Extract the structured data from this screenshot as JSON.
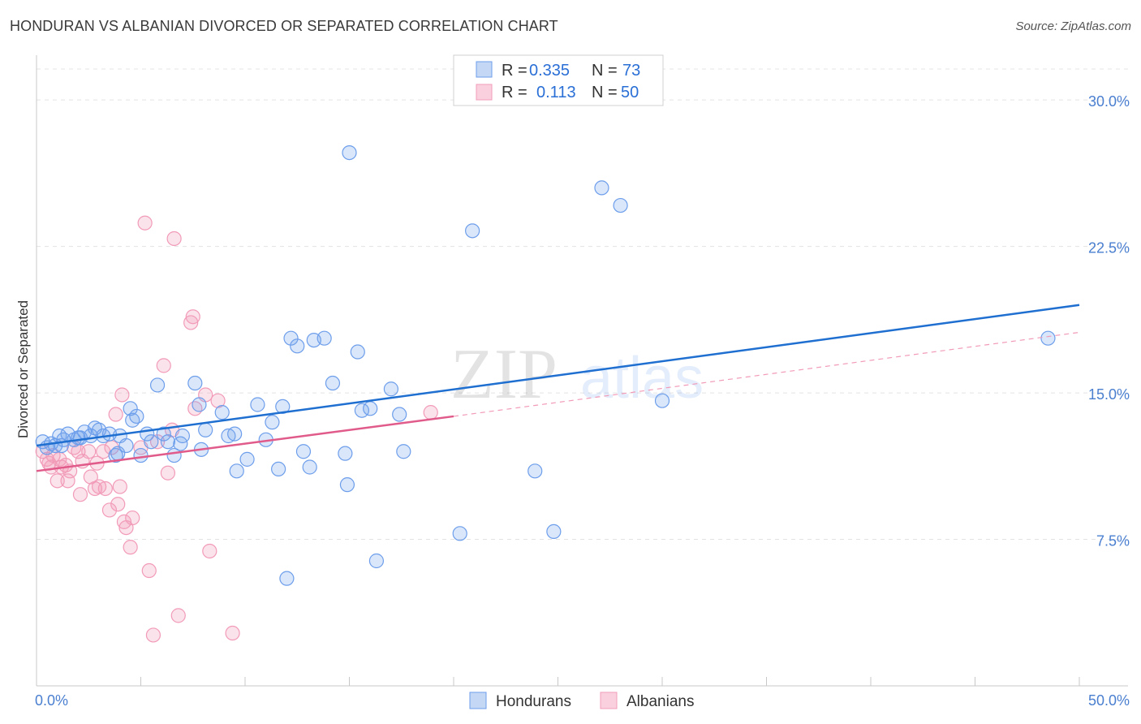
{
  "title": "HONDURAN VS ALBANIAN DIVORCED OR SEPARATED CORRELATION CHART",
  "source": "Source: ZipAtlas.com",
  "watermark": {
    "bold": "ZIP",
    "light": "atlas"
  },
  "colors": {
    "honduran": "#6d9eeb",
    "honduran_line": "#1f6fd1",
    "albanian": "#f29bb8",
    "albanian_line": "#e05a8a",
    "tick": "#4a7fd0"
  },
  "legend": {
    "r_label": "R =",
    "n_label": "N =",
    "rows": [
      {
        "series": "Hondurans",
        "r": "0.335",
        "n": "73"
      },
      {
        "series": "Albanians",
        "r": "0.113",
        "n": "50"
      }
    ]
  },
  "chart_data": {
    "type": "scatter",
    "title": "HONDURAN VS ALBANIAN DIVORCED OR SEPARATED CORRELATION CHART",
    "xlabel": "",
    "ylabel": "Divorced or Separated",
    "xlim": [
      0,
      50
    ],
    "ylim": [
      0,
      32
    ],
    "x_tick_labels": [
      "0.0%",
      "50.0%"
    ],
    "y_ticks": [
      7.5,
      15.0,
      22.5,
      30.0
    ],
    "y_tick_labels": [
      "7.5%",
      "15.0%",
      "22.5%",
      "30.0%"
    ],
    "series": [
      {
        "name": "Hondurans",
        "r": 0.335,
        "n": 73,
        "trend": {
          "x": [
            0,
            50
          ],
          "y": [
            12.3,
            19.5
          ]
        },
        "points": [
          [
            0.3,
            12.5
          ],
          [
            0.5,
            12.2
          ],
          [
            0.7,
            12.4
          ],
          [
            0.9,
            12.3
          ],
          [
            1.1,
            12.8
          ],
          [
            1.3,
            12.6
          ],
          [
            1.5,
            12.9
          ],
          [
            1.8,
            12.6
          ],
          [
            2.0,
            12.7
          ],
          [
            2.3,
            13.0
          ],
          [
            2.6,
            12.8
          ],
          [
            2.8,
            13.2
          ],
          [
            3.0,
            13.1
          ],
          [
            3.2,
            12.8
          ],
          [
            3.5,
            12.9
          ],
          [
            3.8,
            11.8
          ],
          [
            4.0,
            12.8
          ],
          [
            4.3,
            12.3
          ],
          [
            4.5,
            14.2
          ],
          [
            4.6,
            13.6
          ],
          [
            4.8,
            13.8
          ],
          [
            5.0,
            11.8
          ],
          [
            5.3,
            12.9
          ],
          [
            5.5,
            12.5
          ],
          [
            5.8,
            15.4
          ],
          [
            6.1,
            12.9
          ],
          [
            6.6,
            11.8
          ],
          [
            6.9,
            12.4
          ],
          [
            7.0,
            12.8
          ],
          [
            7.8,
            14.4
          ],
          [
            7.9,
            12.1
          ],
          [
            7.6,
            15.5
          ],
          [
            8.1,
            13.1
          ],
          [
            8.9,
            14.0
          ],
          [
            9.2,
            12.8
          ],
          [
            9.6,
            11.0
          ],
          [
            10.1,
            11.6
          ],
          [
            10.6,
            14.4
          ],
          [
            11.0,
            12.6
          ],
          [
            11.3,
            13.5
          ],
          [
            11.6,
            11.1
          ],
          [
            11.8,
            14.3
          ],
          [
            12.2,
            17.8
          ],
          [
            12.5,
            17.4
          ],
          [
            12.8,
            12.0
          ],
          [
            13.1,
            11.2
          ],
          [
            13.3,
            17.7
          ],
          [
            13.8,
            17.8
          ],
          [
            14.2,
            15.5
          ],
          [
            14.8,
            11.9
          ],
          [
            14.9,
            10.3
          ],
          [
            15.4,
            17.1
          ],
          [
            16.0,
            14.2
          ],
          [
            15.6,
            14.1
          ],
          [
            15.0,
            27.3
          ],
          [
            16.3,
            6.4
          ],
          [
            17.0,
            15.2
          ],
          [
            17.6,
            12.0
          ],
          [
            17.4,
            13.9
          ],
          [
            20.3,
            7.8
          ],
          [
            20.9,
            23.3
          ],
          [
            23.9,
            11.0
          ],
          [
            24.8,
            7.9
          ],
          [
            27.1,
            25.5
          ],
          [
            28.0,
            24.6
          ],
          [
            30.0,
            14.6
          ],
          [
            48.5,
            17.8
          ],
          [
            12.0,
            5.5
          ],
          [
            9.5,
            12.9
          ],
          [
            3.9,
            11.9
          ],
          [
            2.1,
            12.7
          ],
          [
            6.3,
            12.5
          ],
          [
            1.2,
            12.3
          ]
        ]
      },
      {
        "name": "Albanians",
        "r": 0.113,
        "n": 50,
        "trend": {
          "x": [
            0,
            20
          ],
          "y": [
            11.0,
            13.8
          ]
        },
        "trend_extended": {
          "x": [
            20,
            50
          ],
          "y": [
            13.8,
            18.1
          ]
        },
        "points": [
          [
            0.3,
            12.0
          ],
          [
            0.5,
            11.6
          ],
          [
            0.7,
            11.2
          ],
          [
            0.8,
            11.8
          ],
          [
            1.0,
            10.5
          ],
          [
            1.2,
            11.2
          ],
          [
            1.4,
            11.3
          ],
          [
            1.5,
            10.5
          ],
          [
            1.6,
            11.0
          ],
          [
            1.8,
            12.2
          ],
          [
            2.0,
            12.0
          ],
          [
            2.1,
            9.8
          ],
          [
            2.2,
            11.5
          ],
          [
            2.5,
            12.0
          ],
          [
            2.6,
            10.7
          ],
          [
            2.8,
            10.1
          ],
          [
            2.9,
            11.4
          ],
          [
            3.0,
            10.2
          ],
          [
            3.2,
            12.0
          ],
          [
            3.3,
            10.1
          ],
          [
            3.5,
            9.0
          ],
          [
            3.6,
            12.2
          ],
          [
            3.8,
            13.9
          ],
          [
            3.9,
            9.3
          ],
          [
            4.0,
            10.2
          ],
          [
            4.1,
            14.9
          ],
          [
            4.2,
            8.4
          ],
          [
            4.3,
            8.1
          ],
          [
            4.5,
            7.1
          ],
          [
            4.6,
            8.6
          ],
          [
            5.0,
            12.2
          ],
          [
            5.2,
            23.7
          ],
          [
            5.4,
            5.9
          ],
          [
            5.6,
            2.6
          ],
          [
            5.8,
            12.5
          ],
          [
            6.1,
            16.4
          ],
          [
            6.3,
            10.9
          ],
          [
            6.5,
            13.1
          ],
          [
            6.6,
            22.9
          ],
          [
            6.8,
            3.6
          ],
          [
            7.4,
            18.6
          ],
          [
            7.5,
            18.9
          ],
          [
            7.6,
            14.2
          ],
          [
            8.1,
            14.9
          ],
          [
            8.3,
            6.9
          ],
          [
            8.7,
            14.6
          ],
          [
            9.4,
            2.7
          ],
          [
            18.9,
            14.0
          ],
          [
            1.1,
            11.6
          ],
          [
            0.6,
            11.4
          ]
        ]
      }
    ]
  }
}
